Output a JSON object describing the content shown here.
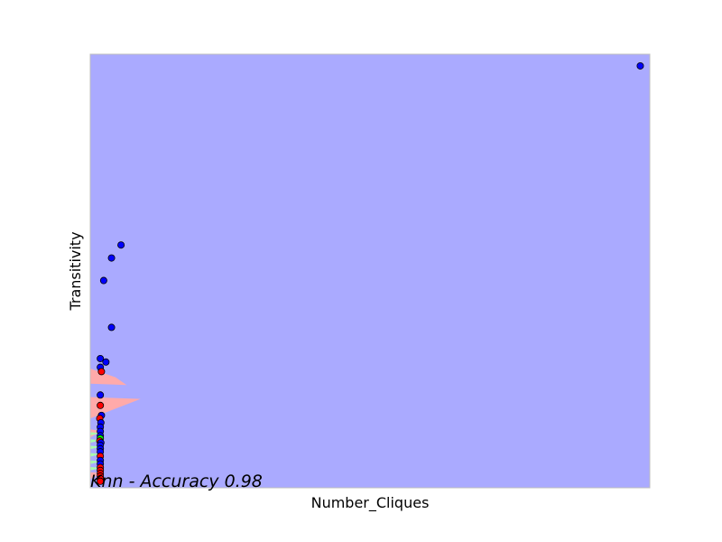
{
  "chart_data": {
    "type": "scatter",
    "title": "Knn - Accuracy 0.98",
    "xlabel": "Number_Cliques",
    "ylabel": "Transitivity",
    "xlim": [
      0,
      1
    ],
    "ylim": [
      0,
      1
    ],
    "ticks_shown": false,
    "grid": false,
    "colors": {
      "background_region": "#aaaaff",
      "region_red": "#ffaaaa",
      "region_green": "#aaffaa",
      "class_blue": "#0000ff",
      "class_red": "#ff0000",
      "class_green": "#00ff00"
    },
    "regions": [
      {
        "class": "red",
        "polygon": [
          [
            0,
            0.275
          ],
          [
            0.045,
            0.255
          ],
          [
            0.065,
            0.237
          ],
          [
            0,
            0.24
          ]
        ]
      },
      {
        "class": "red",
        "polygon": [
          [
            0,
            0.209
          ],
          [
            0.09,
            0.205
          ],
          [
            0,
            0.16
          ]
        ]
      },
      {
        "class": "red",
        "polygon": [
          [
            0,
            0.135
          ],
          [
            0.02,
            0.131
          ],
          [
            0,
            0.116
          ]
        ]
      },
      {
        "class": "green",
        "polygon": [
          [
            0,
            0.128
          ],
          [
            0.02,
            0.126
          ],
          [
            0,
            0.121
          ]
        ]
      },
      {
        "class": "green",
        "polygon": [
          [
            0,
            0.112
          ],
          [
            0.02,
            0.11
          ],
          [
            0,
            0.104
          ]
        ]
      },
      {
        "class": "green",
        "polygon": [
          [
            0,
            0.097
          ],
          [
            0.02,
            0.095
          ],
          [
            0,
            0.089
          ]
        ]
      },
      {
        "class": "green",
        "polygon": [
          [
            0,
            0.08
          ],
          [
            0.02,
            0.078
          ],
          [
            0,
            0.072
          ]
        ]
      },
      {
        "class": "green",
        "polygon": [
          [
            0,
            0.063
          ],
          [
            0.02,
            0.061
          ],
          [
            0,
            0.055
          ]
        ]
      },
      {
        "class": "green",
        "polygon": [
          [
            0,
            0.048
          ],
          [
            0.02,
            0.046
          ],
          [
            0,
            0.04
          ]
        ]
      },
      {
        "class": "red",
        "polygon": [
          [
            0,
            0.036
          ],
          [
            0.02,
            0.034
          ],
          [
            0,
            0.02
          ]
        ]
      }
    ],
    "points": [
      {
        "x": 0.983,
        "y": 0.973,
        "class": "blue"
      },
      {
        "x": 0.055,
        "y": 0.56,
        "class": "blue"
      },
      {
        "x": 0.038,
        "y": 0.53,
        "class": "blue"
      },
      {
        "x": 0.024,
        "y": 0.478,
        "class": "blue"
      },
      {
        "x": 0.038,
        "y": 0.37,
        "class": "blue"
      },
      {
        "x": 0.018,
        "y": 0.298,
        "class": "blue"
      },
      {
        "x": 0.028,
        "y": 0.29,
        "class": "blue"
      },
      {
        "x": 0.018,
        "y": 0.278,
        "class": "blue"
      },
      {
        "x": 0.02,
        "y": 0.268,
        "class": "red"
      },
      {
        "x": 0.018,
        "y": 0.214,
        "class": "blue"
      },
      {
        "x": 0.018,
        "y": 0.19,
        "class": "red"
      },
      {
        "x": 0.02,
        "y": 0.167,
        "class": "blue"
      },
      {
        "x": 0.017,
        "y": 0.16,
        "class": "red"
      },
      {
        "x": 0.019,
        "y": 0.15,
        "class": "blue"
      },
      {
        "x": 0.018,
        "y": 0.14,
        "class": "blue"
      },
      {
        "x": 0.018,
        "y": 0.13,
        "class": "blue"
      },
      {
        "x": 0.018,
        "y": 0.12,
        "class": "blue"
      },
      {
        "x": 0.018,
        "y": 0.114,
        "class": "green"
      },
      {
        "x": 0.017,
        "y": 0.108,
        "class": "red"
      },
      {
        "x": 0.019,
        "y": 0.104,
        "class": "blue"
      },
      {
        "x": 0.018,
        "y": 0.098,
        "class": "blue"
      },
      {
        "x": 0.018,
        "y": 0.09,
        "class": "blue"
      },
      {
        "x": 0.018,
        "y": 0.083,
        "class": "blue"
      },
      {
        "x": 0.018,
        "y": 0.073,
        "class": "red"
      },
      {
        "x": 0.018,
        "y": 0.063,
        "class": "blue"
      },
      {
        "x": 0.018,
        "y": 0.055,
        "class": "blue"
      },
      {
        "x": 0.018,
        "y": 0.047,
        "class": "red"
      },
      {
        "x": 0.018,
        "y": 0.04,
        "class": "red"
      },
      {
        "x": 0.018,
        "y": 0.033,
        "class": "red"
      },
      {
        "x": 0.018,
        "y": 0.027,
        "class": "red"
      },
      {
        "x": 0.018,
        "y": 0.021,
        "class": "red"
      },
      {
        "x": 0.018,
        "y": 0.015,
        "class": "red"
      }
    ]
  }
}
